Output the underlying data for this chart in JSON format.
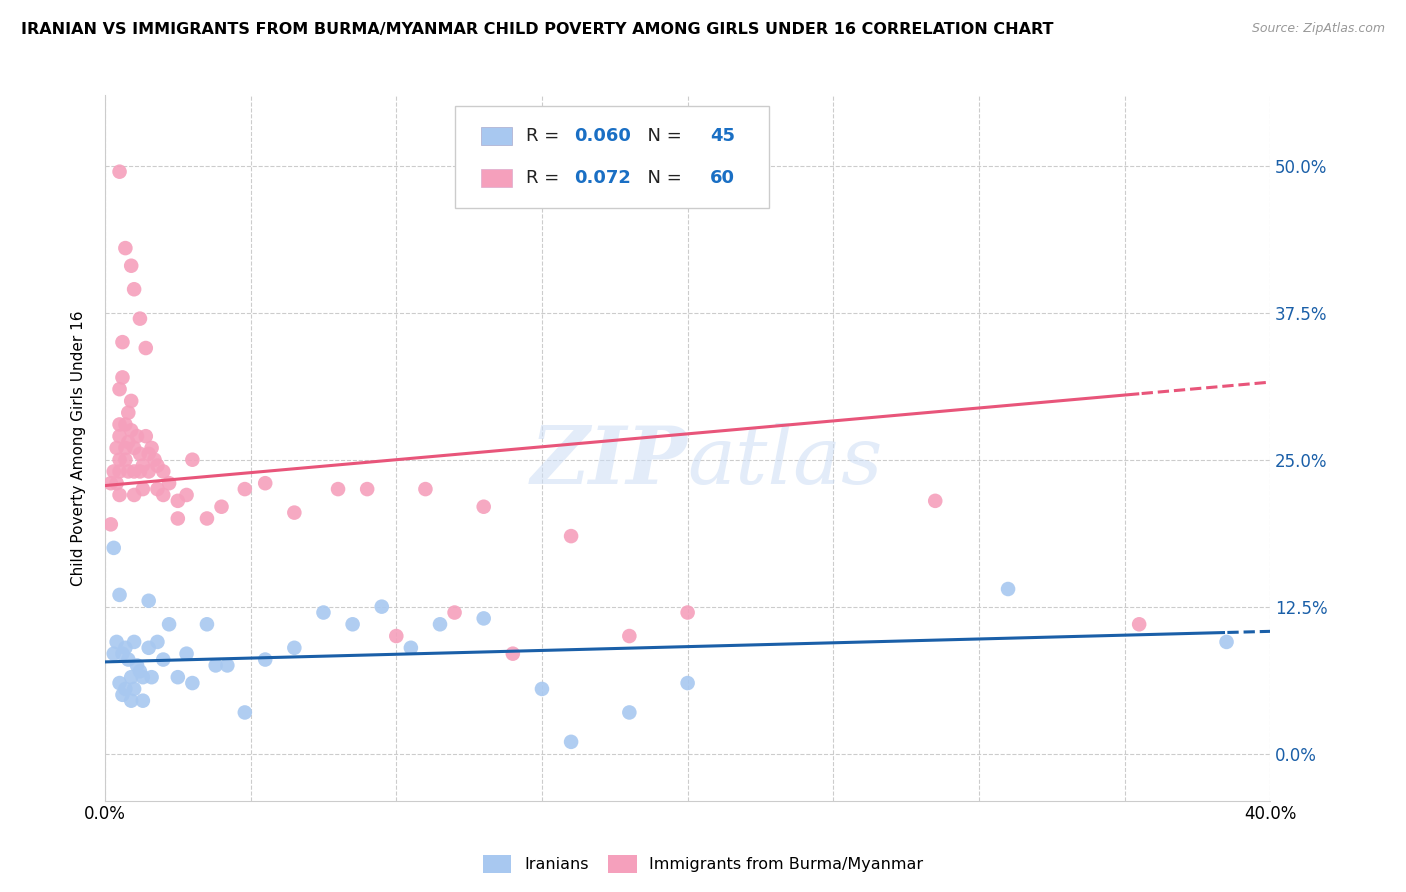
{
  "title": "IRANIAN VS IMMIGRANTS FROM BURMA/MYANMAR CHILD POVERTY AMONG GIRLS UNDER 16 CORRELATION CHART",
  "source": "Source: ZipAtlas.com",
  "ylabel": "Child Poverty Among Girls Under 16",
  "xlim": [
    0.0,
    0.4
  ],
  "ylim": [
    -0.04,
    0.56
  ],
  "ytick_labels": [
    "0.0%",
    "12.5%",
    "25.0%",
    "37.5%",
    "50.0%"
  ],
  "ytick_values": [
    0.0,
    0.125,
    0.25,
    0.375,
    0.5
  ],
  "xtick_values": [
    0.0,
    0.05,
    0.1,
    0.15,
    0.2,
    0.25,
    0.3,
    0.35,
    0.4
  ],
  "legend_label1": "Iranians",
  "legend_label2": "Immigrants from Burma/Myanmar",
  "color_iranians": "#a8c8f0",
  "color_burma": "#f5a0bc",
  "color_iranians_line": "#1a5fa8",
  "color_burma_line": "#e8557a",
  "R_iranians": 0.06,
  "N_iranians": 45,
  "R_burma": 0.072,
  "N_burma": 60,
  "watermark": "ZIPatlas",
  "iranians_x": [
    0.003,
    0.003,
    0.004,
    0.005,
    0.005,
    0.006,
    0.006,
    0.007,
    0.007,
    0.008,
    0.009,
    0.009,
    0.01,
    0.01,
    0.011,
    0.012,
    0.013,
    0.013,
    0.015,
    0.015,
    0.016,
    0.018,
    0.02,
    0.022,
    0.025,
    0.028,
    0.03,
    0.035,
    0.038,
    0.042,
    0.048,
    0.055,
    0.065,
    0.075,
    0.085,
    0.095,
    0.105,
    0.115,
    0.13,
    0.15,
    0.16,
    0.18,
    0.2,
    0.31,
    0.385
  ],
  "iranians_y": [
    0.175,
    0.085,
    0.095,
    0.135,
    0.06,
    0.085,
    0.05,
    0.09,
    0.055,
    0.08,
    0.065,
    0.045,
    0.095,
    0.055,
    0.075,
    0.07,
    0.065,
    0.045,
    0.13,
    0.09,
    0.065,
    0.095,
    0.08,
    0.11,
    0.065,
    0.085,
    0.06,
    0.11,
    0.075,
    0.075,
    0.035,
    0.08,
    0.09,
    0.12,
    0.11,
    0.125,
    0.09,
    0.11,
    0.115,
    0.055,
    0.01,
    0.035,
    0.06,
    0.14,
    0.095
  ],
  "burma_x": [
    0.002,
    0.002,
    0.003,
    0.004,
    0.004,
    0.005,
    0.005,
    0.005,
    0.005,
    0.005,
    0.005,
    0.006,
    0.006,
    0.007,
    0.007,
    0.007,
    0.008,
    0.008,
    0.008,
    0.009,
    0.009,
    0.01,
    0.01,
    0.01,
    0.011,
    0.012,
    0.012,
    0.013,
    0.013,
    0.014,
    0.015,
    0.015,
    0.016,
    0.017,
    0.018,
    0.018,
    0.02,
    0.02,
    0.022,
    0.025,
    0.025,
    0.028,
    0.03,
    0.035,
    0.04,
    0.048,
    0.055,
    0.065,
    0.08,
    0.09,
    0.1,
    0.11,
    0.12,
    0.13,
    0.14,
    0.16,
    0.18,
    0.2,
    0.285,
    0.355
  ],
  "burma_y": [
    0.23,
    0.195,
    0.24,
    0.26,
    0.23,
    0.31,
    0.27,
    0.24,
    0.28,
    0.22,
    0.25,
    0.35,
    0.32,
    0.28,
    0.25,
    0.26,
    0.29,
    0.265,
    0.24,
    0.3,
    0.275,
    0.26,
    0.24,
    0.22,
    0.27,
    0.255,
    0.24,
    0.245,
    0.225,
    0.27,
    0.255,
    0.24,
    0.26,
    0.25,
    0.245,
    0.225,
    0.24,
    0.22,
    0.23,
    0.215,
    0.2,
    0.22,
    0.25,
    0.2,
    0.21,
    0.225,
    0.23,
    0.205,
    0.225,
    0.225,
    0.1,
    0.225,
    0.12,
    0.21,
    0.085,
    0.185,
    0.1,
    0.12,
    0.215,
    0.11
  ],
  "burma_high_y": [
    0.495,
    0.43,
    0.415,
    0.395,
    0.37,
    0.345
  ],
  "burma_high_x": [
    0.005,
    0.007,
    0.009,
    0.01,
    0.012,
    0.014
  ]
}
